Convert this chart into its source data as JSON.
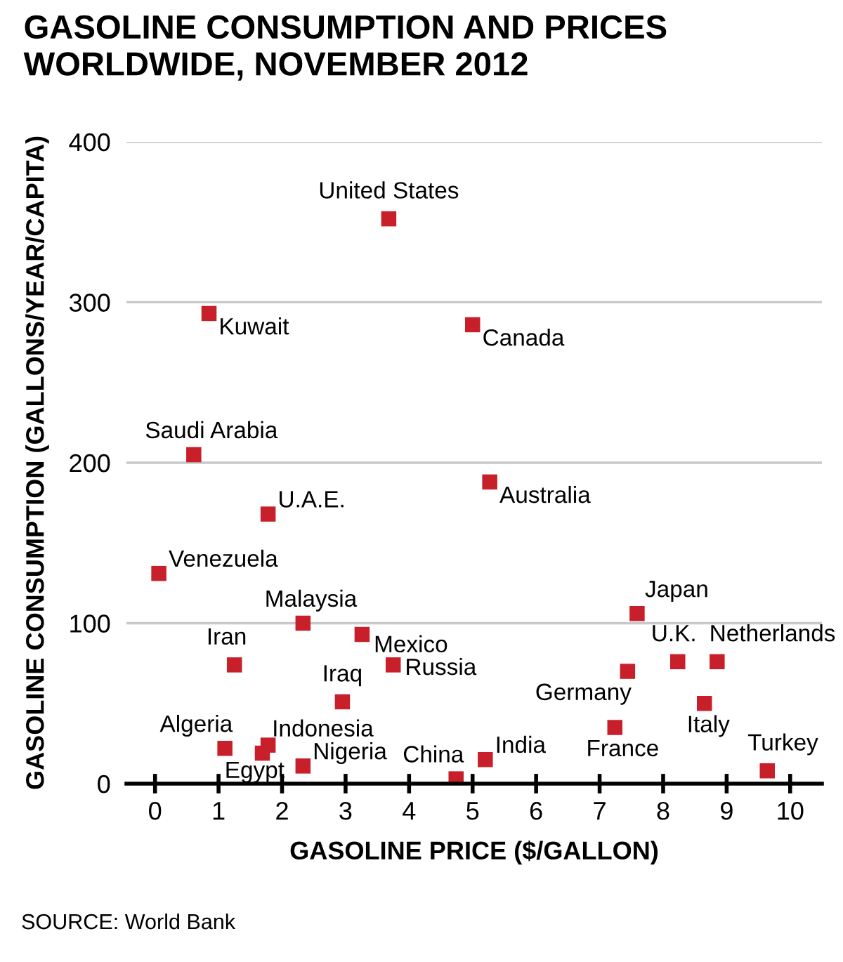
{
  "chart_data": {
    "type": "scatter",
    "title": "GASOLINE CONSUMPTION AND PRICES\nWORLDWIDE, NOVEMBER 2012",
    "xlabel": "GASOLINE PRICE ($/GALLON)",
    "ylabel": "GASOLINE CONSUMPTION (GALLONS/YEAR/CAPITA)",
    "x": [
      3.68,
      0.85,
      5.0,
      0.61,
      1.78,
      5.27,
      0.06,
      2.33,
      3.26,
      1.25,
      3.75,
      2.95,
      1.1,
      1.78,
      1.69,
      2.33,
      4.74,
      5.2,
      7.59,
      8.23,
      8.85,
      7.44,
      8.65,
      7.24,
      9.64
    ],
    "series": [
      {
        "color": "#c8202a",
        "values": [
          352,
          293,
          286,
          205,
          168,
          188,
          131,
          100,
          93,
          74,
          74,
          51,
          22,
          24,
          19,
          11,
          3,
          15,
          106,
          76,
          76,
          70,
          50,
          35,
          8
        ]
      }
    ],
    "marker": "square",
    "grid": "y",
    "xlim": [
      -0.45,
      10.5
    ],
    "ylim": [
      0,
      400
    ],
    "xticks": [
      0,
      1,
      2,
      3,
      4,
      5,
      6,
      7,
      8,
      9,
      10
    ],
    "yticks": [
      0,
      100,
      200,
      300,
      400
    ],
    "annotations": [
      {
        "text": "United States",
        "x": 3.68,
        "y": 352
      },
      {
        "text": "Kuwait",
        "x": 0.85,
        "y": 293
      },
      {
        "text": "Canada",
        "x": 5.0,
        "y": 286
      },
      {
        "text": "Saudi Arabia",
        "x": 0.61,
        "y": 205
      },
      {
        "text": "U.A.E.",
        "x": 1.78,
        "y": 168
      },
      {
        "text": "Australia",
        "x": 5.27,
        "y": 188
      },
      {
        "text": "Venezuela",
        "x": 0.06,
        "y": 131
      },
      {
        "text": "Malaysia",
        "x": 2.33,
        "y": 100
      },
      {
        "text": "Mexico",
        "x": 3.26,
        "y": 93
      },
      {
        "text": "Iran",
        "x": 1.25,
        "y": 74
      },
      {
        "text": "Russia",
        "x": 3.75,
        "y": 74
      },
      {
        "text": "Iraq",
        "x": 2.95,
        "y": 51
      },
      {
        "text": "Algeria",
        "x": 1.1,
        "y": 22
      },
      {
        "text": "Indonesia",
        "x": 1.78,
        "y": 24
      },
      {
        "text": "Egypt",
        "x": 1.69,
        "y": 19
      },
      {
        "text": "Nigeria",
        "x": 2.33,
        "y": 11
      },
      {
        "text": "China",
        "x": 4.74,
        "y": 3
      },
      {
        "text": "India",
        "x": 5.2,
        "y": 15
      },
      {
        "text": "Japan",
        "x": 7.59,
        "y": 106
      },
      {
        "text": "U.K.",
        "x": 8.23,
        "y": 76
      },
      {
        "text": "Netherlands",
        "x": 8.85,
        "y": 76
      },
      {
        "text": "Germany",
        "x": 7.44,
        "y": 70
      },
      {
        "text": "Italy",
        "x": 8.65,
        "y": 50
      },
      {
        "text": "France",
        "x": 7.24,
        "y": 35
      },
      {
        "text": "Turkey",
        "x": 9.64,
        "y": 8
      },
      "SOURCE: World Bank"
    ]
  }
}
